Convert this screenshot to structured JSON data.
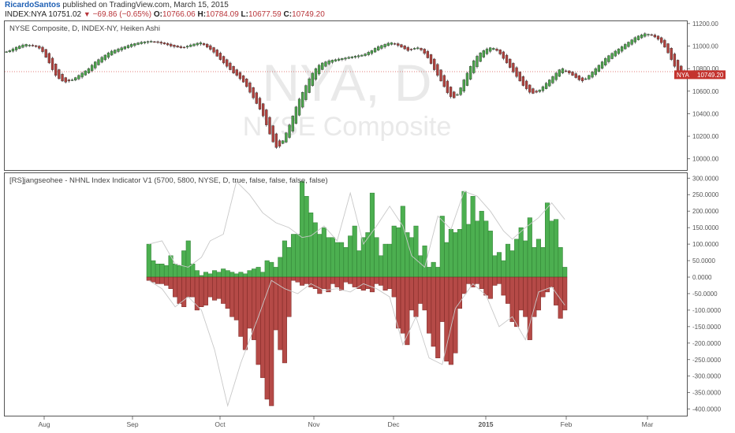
{
  "header": {
    "author": "RicardoSantos",
    "published_text": "published on TradingView.com, March 15, 2015",
    "symbol": "INDEX:NYA",
    "last": "10751.02",
    "change": "−69.86 (−0.65%)",
    "open_label": "O:",
    "open": "10766.06",
    "high_label": "H:",
    "high": "10784.09",
    "low_label": "L:",
    "low": "10677.59",
    "close_label": "C:",
    "close": "10749.20"
  },
  "price_panel": {
    "title": "NYSE Composite, D, INDEX-NY, Heiken Ashi",
    "watermark_symbol": "NYA, D",
    "watermark_name": "NYSE Composite",
    "y_ticks": [
      "11200.00",
      "11000.00",
      "10800.00",
      "10600.00",
      "10400.00",
      "10200.00",
      "10000.00"
    ],
    "last_badge_symbol": "NYA",
    "last_badge_value": "10749.20",
    "colors": {
      "up": "#4aa34a",
      "down": "#b0403c",
      "badge": "#c4332e"
    }
  },
  "indicator_panel": {
    "title": "[RS]jangseohee - NHNL Index Indicator V1 (5700, 5800, NYSE, D, true, false, false, false, false)",
    "y_ticks": [
      "300.0000",
      "250.0000",
      "200.0000",
      "150.0000",
      "100.0000",
      "50.0000",
      "0.0000",
      "-50.0000",
      "-100.0000",
      "-150.0000",
      "-200.0000",
      "-250.0000",
      "-300.0000",
      "-350.0000",
      "-400.0000"
    ]
  },
  "x_axis": {
    "labels": [
      "Aug",
      "Sep",
      "Oct",
      "Nov",
      "Dec",
      "2015",
      "Feb",
      "Mar"
    ],
    "bold_label": "2015"
  },
  "chart_data": [
    {
      "type": "candlestick",
      "title": "NYSE Composite, D, INDEX-NY, Heiken Ashi",
      "ylim": [
        9900,
        11220
      ],
      "last_value": 10749.2,
      "ha_close": [
        10950,
        10960,
        10975,
        10990,
        11000,
        11010,
        11015,
        11008,
        11000,
        10995,
        10980,
        10950,
        10900,
        10850,
        10790,
        10740,
        10710,
        10690,
        10680,
        10690,
        10700,
        10720,
        10740,
        10760,
        10780,
        10800,
        10830,
        10860,
        10880,
        10900,
        10920,
        10940,
        10955,
        10965,
        10975,
        10985,
        10995,
        11005,
        11015,
        11022,
        11028,
        11034,
        11038,
        11040,
        11042,
        11038,
        11032,
        11025,
        11018,
        11010,
        11000,
        10995,
        10990,
        10985,
        10990,
        11000,
        11010,
        11018,
        11025,
        11030,
        11010,
        10990,
        10970,
        10945,
        10910,
        10880,
        10850,
        10820,
        10790,
        10760,
        10740,
        10710,
        10680,
        10640,
        10590,
        10540,
        10490,
        10440,
        10380,
        10300,
        10220,
        10150,
        10100,
        10110,
        10160,
        10230,
        10300,
        10380,
        10460,
        10530,
        10590,
        10650,
        10710,
        10760,
        10800,
        10830,
        10850,
        10860,
        10870,
        10875,
        10880,
        10885,
        10890,
        10895,
        10900,
        10905,
        10910,
        10915,
        10920,
        10930,
        10945,
        10960,
        10980,
        10995,
        11005,
        11015,
        11025,
        11030,
        11020,
        11005,
        10990,
        10975,
        10960,
        10970,
        10980,
        10985,
        10965,
        10935,
        10895,
        10845,
        10790,
        10740,
        10690,
        10640,
        10585,
        10550,
        10540,
        10570,
        10630,
        10700,
        10760,
        10820,
        10870,
        10910,
        10940,
        10960,
        10975,
        10985,
        10980,
        10960,
        10930,
        10890,
        10850,
        10810,
        10770,
        10730,
        10690,
        10650,
        10620,
        10590,
        10580,
        10590,
        10610,
        10640,
        10670,
        10700,
        10730,
        10760,
        10790,
        10800,
        10780,
        10760,
        10740,
        10720,
        10700,
        10690,
        10710,
        10740,
        10770,
        10800,
        10830,
        10860,
        10890,
        10915,
        10935,
        10955,
        10975,
        10995,
        11015,
        11035,
        11055,
        11075,
        11090,
        11100,
        11110,
        11105,
        11095,
        11080,
        11060,
        11030,
        10990,
        10940,
        10880,
        10820,
        10770,
        10740,
        10749
      ]
    },
    {
      "type": "bar",
      "title": "[RS]jangseohee - NHNL Index Indicator V1 (5700, 5800, NYSE, D, true, false, false, false, false)",
      "ylim": [
        -420,
        315
      ],
      "new_highs": [
        100,
        50,
        40,
        40,
        35,
        65,
        40,
        35,
        80,
        110,
        40,
        20,
        5,
        15,
        10,
        20,
        15,
        25,
        20,
        15,
        10,
        15,
        10,
        20,
        25,
        30,
        15,
        50,
        45,
        30,
        60,
        110,
        90,
        130,
        130,
        290,
        245,
        195,
        165,
        130,
        150,
        120,
        120,
        105,
        105,
        90,
        125,
        155,
        80,
        120,
        135,
        255,
        120,
        65,
        100,
        100,
        155,
        150,
        215,
        135,
        120,
        155,
        65,
        95,
        30,
        45,
        30,
        185,
        105,
        145,
        135,
        145,
        260,
        160,
        245,
        170,
        200,
        170,
        140,
        65,
        75,
        50,
        100,
        80,
        115,
        150,
        110,
        180,
        90,
        115,
        90,
        225,
        170,
        175,
        90,
        30
      ],
      "new_lows": [
        -10,
        -15,
        -20,
        -20,
        -25,
        -35,
        -60,
        -80,
        -90,
        -60,
        -60,
        -100,
        -90,
        -85,
        -60,
        -70,
        -65,
        -80,
        -95,
        -120,
        -130,
        -180,
        -220,
        -155,
        -190,
        -265,
        -305,
        -370,
        -390,
        -160,
        -220,
        -260,
        -120,
        -10,
        -15,
        -25,
        -20,
        -30,
        -35,
        -50,
        -35,
        -45,
        -20,
        -30,
        -40,
        -15,
        -20,
        -30,
        -35,
        -40,
        -35,
        -45,
        -20,
        -25,
        -40,
        -35,
        -60,
        -155,
        -170,
        -205,
        -100,
        -120,
        -80,
        -100,
        -170,
        -210,
        -245,
        -135,
        -255,
        -265,
        -230,
        -95,
        -50,
        -20,
        -30,
        -20,
        -35,
        -55,
        -65,
        -25,
        -20,
        -55,
        -80,
        -135,
        -150,
        -100,
        -120,
        -190,
        -120,
        -100,
        -60,
        -45,
        -30,
        -85,
        -125,
        -100
      ],
      "highs_envelope": [
        100,
        110,
        40,
        30,
        60,
        110,
        130,
        290,
        250,
        195,
        165,
        150,
        120,
        125,
        155,
        110,
        255,
        100,
        155,
        215,
        155,
        65,
        30,
        185,
        145,
        260,
        245,
        200,
        140,
        115,
        150,
        180,
        225,
        175
      ],
      "lows_envelope": [
        -10,
        -35,
        -90,
        -60,
        -100,
        -220,
        -390,
        -260,
        -120,
        -10,
        -35,
        -50,
        -20,
        -40,
        -35,
        -45,
        -20,
        -35,
        -60,
        -205,
        -120,
        -245,
        -265,
        -95,
        -20,
        -55,
        -150,
        -120,
        -190,
        -45,
        -30,
        -85
      ]
    }
  ]
}
